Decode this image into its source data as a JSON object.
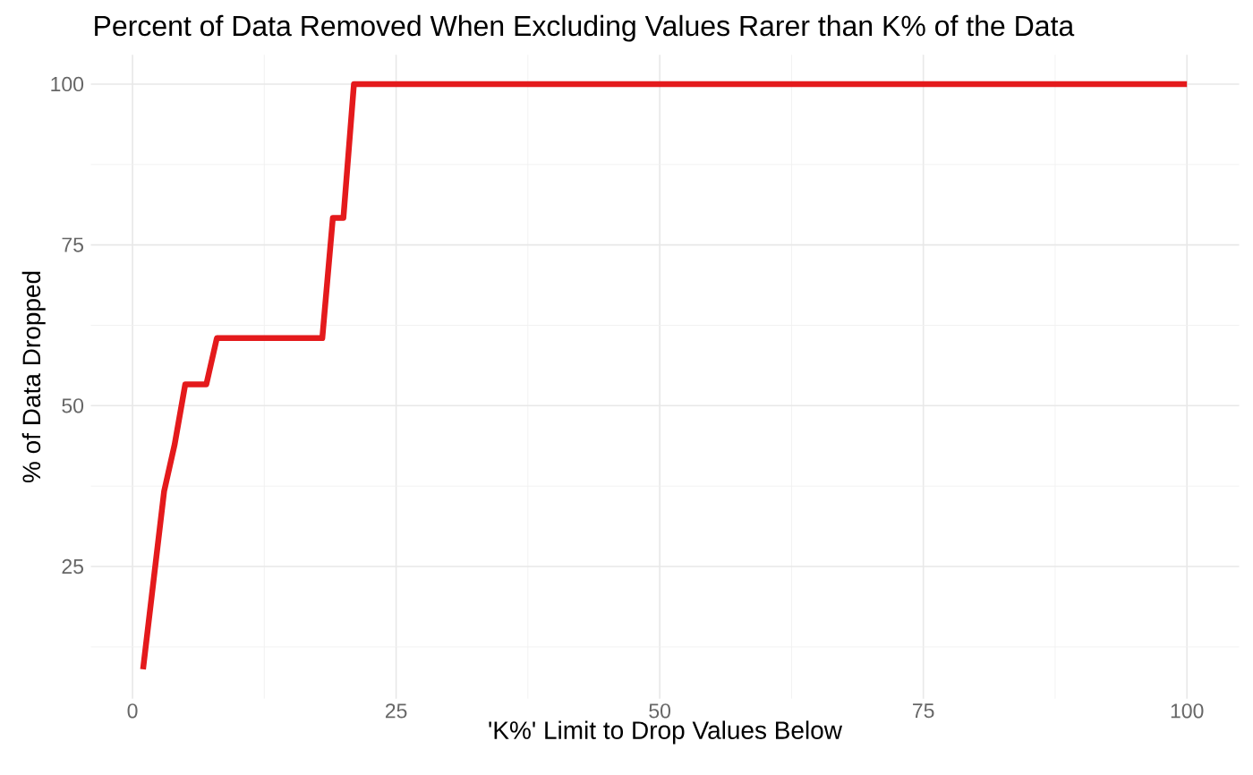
{
  "chart_data": {
    "type": "line",
    "title": "Percent of Data Removed When Excluding Values Rarer than K% of the Data",
    "xlabel": "'K%' Limit to Drop Values Below",
    "ylabel": "% of Data Dropped",
    "x": [
      1,
      3,
      4,
      5,
      7,
      8,
      18,
      19,
      20,
      21,
      100
    ],
    "series": [
      {
        "color": "#e41a1c",
        "values": [
          9,
          36.7,
          44,
          53.3,
          53.3,
          60.5,
          60.5,
          79.2,
          79.2,
          100,
          100
        ]
      }
    ],
    "xlim": [
      -3.95,
      104.95
    ],
    "ylim": [
      4.45,
      104.55
    ],
    "xticks": [
      0,
      {
        "value": 12.5,
        "label": null
      },
      25,
      {
        "value": 37.5,
        "label": null
      },
      50,
      {
        "value": 62.5,
        "label": null
      },
      75,
      {
        "value": 87.5,
        "label": null
      },
      100
    ],
    "yticks": [
      {
        "value": 12.5,
        "label": null
      },
      25,
      {
        "value": 37.5,
        "label": null
      },
      50,
      {
        "value": 62.5,
        "label": null
      },
      75,
      {
        "value": 87.5,
        "label": null
      },
      100
    ],
    "grid": true,
    "marker": "none",
    "line_style": "solid"
  }
}
